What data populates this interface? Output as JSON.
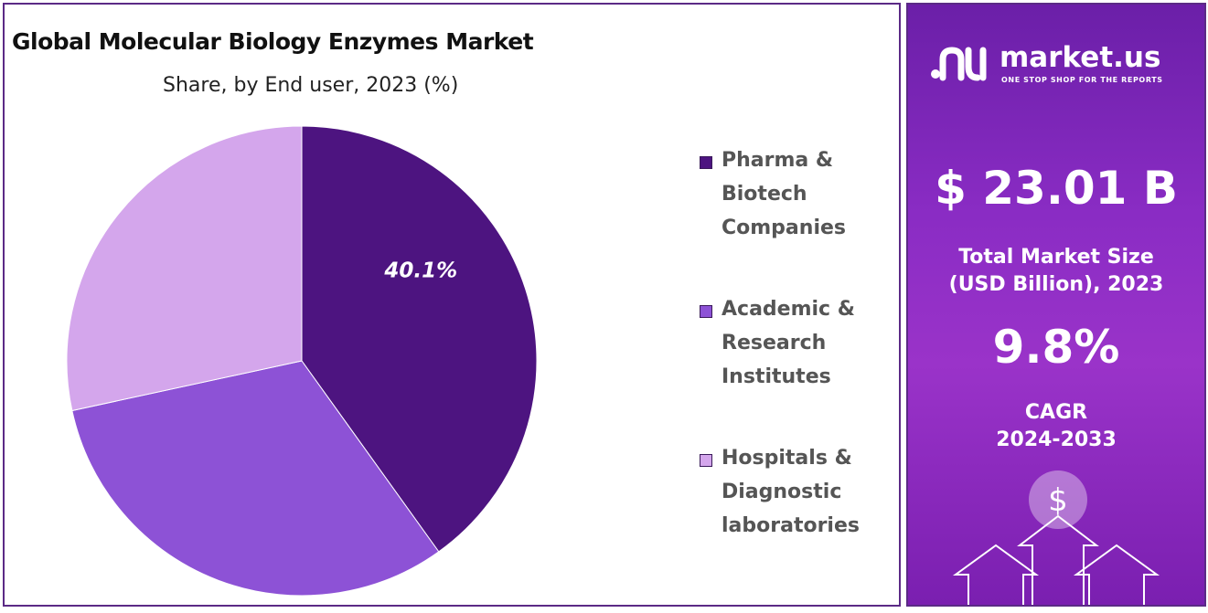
{
  "chart_data": {
    "type": "pie",
    "title": "Global Molecular Biology Enzymes Market",
    "subtitle": "Share, by End user, 2023 (%)",
    "categories": [
      "Pharma & Biotech Companies",
      "Academic & Research Institutes",
      "Hospitals & Diagnostic laboratories"
    ],
    "values": [
      40.1,
      31.5,
      28.4
    ],
    "data_labels": [
      "40.1%",
      "",
      ""
    ],
    "colors": [
      "#4d1480",
      "#8d52d6",
      "#d4a6ec"
    ],
    "legend_placement": "right",
    "legend_lines": [
      [
        "Pharma &",
        "Biotech",
        "Companies"
      ],
      [
        "Academic &",
        "Research",
        "Institutes"
      ],
      [
        "Hospitals &",
        "Diagnostic",
        "laboratories"
      ]
    ]
  },
  "side_panel": {
    "brand_name": "market.us",
    "brand_tagline": "ONE STOP SHOP FOR THE REPORTS",
    "market_size_value": "$ 23.01 B",
    "market_size_label_1": "Total Market Size",
    "market_size_label_2": "(USD Billion), 2023",
    "cagr_value": "9.8%",
    "cagr_label_1": "CAGR",
    "cagr_label_2": "2024-2033",
    "dollar_symbol": "$"
  }
}
